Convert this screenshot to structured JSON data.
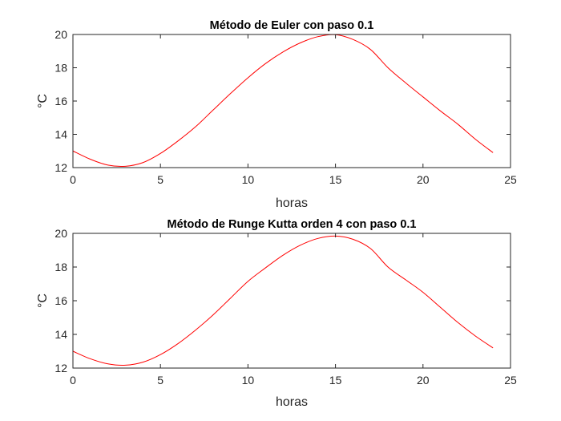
{
  "chart_data": [
    {
      "type": "line",
      "title": "Método de Euler con paso 0.1",
      "xlabel": "horas",
      "ylabel": "°C",
      "xlim": [
        0,
        25
      ],
      "ylim": [
        12,
        20
      ],
      "xticks": [
        "0",
        "5",
        "10",
        "15",
        "20",
        "25"
      ],
      "yticks": [
        "12",
        "14",
        "16",
        "18",
        "20"
      ],
      "grid": false,
      "line_color": "#ff0000",
      "series": [
        {
          "x": [
            0,
            1,
            2,
            3,
            4,
            5,
            6,
            7,
            8,
            9,
            10,
            11,
            12,
            13,
            14,
            15,
            16,
            17,
            18,
            19,
            20,
            21,
            22,
            23,
            24
          ],
          "y": [
            13.0,
            12.5,
            12.15,
            12.08,
            12.3,
            12.85,
            13.6,
            14.45,
            15.45,
            16.45,
            17.4,
            18.25,
            18.95,
            19.5,
            19.87,
            19.99,
            19.7,
            19.1,
            18.0,
            17.1,
            16.25,
            15.4,
            14.6,
            13.7,
            12.9
          ]
        }
      ]
    },
    {
      "type": "line",
      "title": "Método de Runge Kutta orden 4 con paso 0.1",
      "xlabel": "horas",
      "ylabel": "°C",
      "xlim": [
        0,
        25
      ],
      "ylim": [
        12,
        20
      ],
      "xticks": [
        "0",
        "5",
        "10",
        "15",
        "20",
        "25"
      ],
      "yticks": [
        "12",
        "14",
        "16",
        "18",
        "20"
      ],
      "grid": false,
      "line_color": "#ff0000",
      "series": [
        {
          "x": [
            0,
            1,
            2,
            3,
            4,
            5,
            6,
            7,
            8,
            9,
            10,
            11,
            12,
            13,
            14,
            15,
            16,
            17,
            18,
            19,
            20,
            21,
            22,
            23,
            24
          ],
          "y": [
            13.0,
            12.55,
            12.25,
            12.17,
            12.35,
            12.8,
            13.45,
            14.25,
            15.15,
            16.15,
            17.15,
            17.95,
            18.7,
            19.3,
            19.7,
            19.84,
            19.65,
            19.1,
            18.0,
            17.25,
            16.5,
            15.6,
            14.7,
            13.9,
            13.2
          ]
        }
      ]
    }
  ]
}
